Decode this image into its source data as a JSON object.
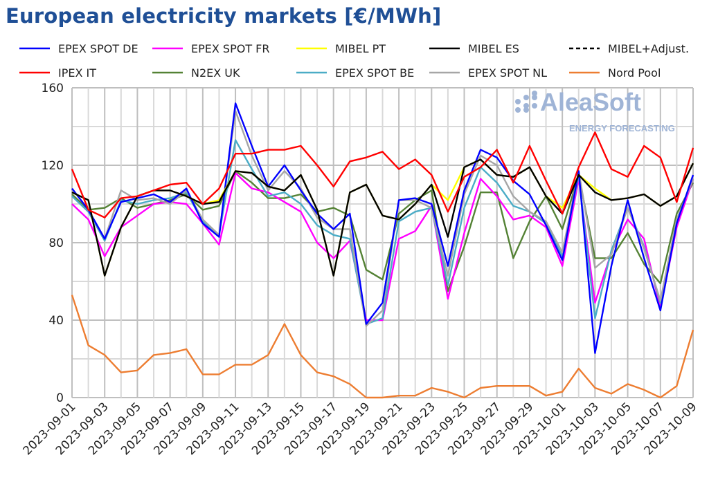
{
  "chart_data": {
    "type": "line",
    "title": "European electricity markets [€/MWh]",
    "xlabel": "",
    "ylabel": "",
    "ylim": [
      0,
      160
    ],
    "yticks": [
      0,
      40,
      80,
      120,
      160
    ],
    "grid": true,
    "legend_placement": "top",
    "watermark": {
      "brand": "AleaSoft",
      "tagline": "ENERGY FORECASTING"
    },
    "x": [
      "2023-09-01",
      "2023-09-02",
      "2023-09-03",
      "2023-09-04",
      "2023-09-05",
      "2023-09-06",
      "2023-09-07",
      "2023-09-08",
      "2023-09-09",
      "2023-09-10",
      "2023-09-11",
      "2023-09-12",
      "2023-09-13",
      "2023-09-14",
      "2023-09-15",
      "2023-09-16",
      "2023-09-17",
      "2023-09-18",
      "2023-09-19",
      "2023-09-20",
      "2023-09-21",
      "2023-09-22",
      "2023-09-23",
      "2023-09-24",
      "2023-09-25",
      "2023-09-26",
      "2023-09-27",
      "2023-09-28",
      "2023-09-29",
      "2023-09-30",
      "2023-10-01",
      "2023-10-02",
      "2023-10-03",
      "2023-10-04",
      "2023-10-05",
      "2023-10-06",
      "2023-10-07",
      "2023-10-08",
      "2023-10-09"
    ],
    "xtick_labels": [
      "2023-09-01",
      "2023-09-03",
      "2023-09-05",
      "2023-09-07",
      "2023-09-09",
      "2023-09-11",
      "2023-09-13",
      "2023-09-15",
      "2023-09-17",
      "2023-09-19",
      "2023-09-21",
      "2023-09-23",
      "2023-09-25",
      "2023-09-27",
      "2023-09-29",
      "2023-10-01",
      "2023-10-03",
      "2023-10-05",
      "2023-10-07",
      "2023-10-09"
    ],
    "series": [
      {
        "name": "Nord Pool",
        "color": "#ed7d31",
        "values": [
          53,
          27,
          22,
          13,
          14,
          22,
          23,
          25,
          12,
          12,
          17,
          17,
          22,
          38,
          22,
          13,
          11,
          7,
          0,
          0,
          1,
          1,
          5,
          3,
          0,
          5,
          6,
          6,
          6,
          1,
          3,
          15,
          5,
          2,
          7,
          4,
          0,
          6,
          35
        ]
      },
      {
        "name": "N2EX UK",
        "color": "#548235",
        "values": [
          105,
          97,
          98,
          103,
          98,
          100,
          102,
          105,
          97,
          99,
          117,
          111,
          103,
          103,
          105,
          96,
          98,
          94,
          66,
          61,
          95,
          102,
          107,
          55,
          78,
          106,
          106,
          72,
          91,
          104,
          87,
          115,
          72,
          72,
          85,
          69,
          59,
          95,
          111
        ]
      },
      {
        "name": "EPEX SPOT FR",
        "color": "#ff00ff",
        "values": [
          100,
          92,
          73,
          88,
          94,
          100,
          101,
          100,
          90,
          79,
          116,
          108,
          106,
          101,
          96,
          80,
          72,
          81,
          40,
          40,
          82,
          86,
          99,
          51,
          85,
          113,
          104,
          92,
          94,
          88,
          68,
          113,
          49,
          75,
          92,
          82,
          46,
          88,
          113
        ]
      },
      {
        "name": "EPEX SPOT BE",
        "color": "#4bacc6",
        "values": [
          104,
          96,
          81,
          102,
          100,
          102,
          103,
          106,
          91,
          84,
          133,
          118,
          104,
          106,
          100,
          89,
          84,
          82,
          38,
          41,
          91,
          96,
          98,
          58,
          98,
          119,
          111,
          99,
          96,
          90,
          73,
          115,
          41,
          76,
          98,
          78,
          49,
          92,
          113
        ]
      },
      {
        "name": "EPEX SPOT NL",
        "color": "#a6a6a6",
        "values": [
          108,
          97,
          82,
          107,
          102,
          103,
          100,
          107,
          92,
          84,
          148,
          125,
          107,
          117,
          108,
          93,
          87,
          87,
          37,
          45,
          102,
          102,
          98,
          63,
          105,
          125,
          120,
          104,
          96,
          91,
          75,
          117,
          67,
          74,
          98,
          77,
          50,
          92,
          113
        ]
      },
      {
        "name": "EPEX SPOT DE",
        "color": "#0000ff",
        "values": [
          108,
          97,
          82,
          101,
          103,
          105,
          101,
          108,
          90,
          83,
          152,
          130,
          109,
          120,
          107,
          95,
          87,
          95,
          38,
          49,
          102,
          103,
          100,
          68,
          107,
          128,
          124,
          112,
          105,
          89,
          71,
          117,
          23,
          68,
          102,
          72,
          45,
          90,
          115
        ]
      },
      {
        "name": "MIBEL PT",
        "color": "#ffff00",
        "values": [
          106,
          102,
          63,
          88,
          104,
          107,
          107,
          104,
          100,
          102,
          117,
          116,
          109,
          107,
          115,
          97,
          63,
          106,
          110,
          94,
          92,
          100,
          110,
          102,
          119,
          123,
          115,
          114,
          119,
          104,
          98,
          115,
          108,
          102,
          103,
          105,
          99,
          104,
          121
        ]
      },
      {
        "name": "MIBEL+Adjust.",
        "color": "#000000",
        "dashed": true,
        "values": [
          106,
          102,
          63,
          88,
          104,
          107,
          107,
          104,
          100,
          101,
          117,
          116,
          109,
          107,
          115,
          97,
          63,
          106,
          110,
          94,
          92,
          100,
          110,
          83,
          119,
          123,
          115,
          114,
          119,
          104,
          95,
          115,
          106,
          102,
          103,
          105,
          99,
          104,
          121
        ]
      },
      {
        "name": "MIBEL ES",
        "color": "#000000",
        "values": [
          106,
          102,
          63,
          88,
          104,
          107,
          107,
          104,
          100,
          101,
          117,
          116,
          109,
          107,
          115,
          97,
          63,
          106,
          110,
          94,
          92,
          100,
          110,
          83,
          119,
          123,
          115,
          114,
          119,
          104,
          95,
          115,
          106,
          102,
          103,
          105,
          99,
          104,
          121
        ]
      },
      {
        "name": "IPEX IT",
        "color": "#ff0000",
        "values": [
          118,
          97,
          93,
          103,
          104,
          107,
          110,
          111,
          100,
          108,
          126,
          126,
          128,
          128,
          130,
          120,
          109,
          122,
          124,
          127,
          118,
          123,
          115,
          96,
          114,
          119,
          128,
          111,
          130,
          112,
          95,
          119,
          137,
          118,
          114,
          130,
          124,
          101,
          129
        ]
      }
    ],
    "legend_order": [
      "EPEX SPOT DE",
      "EPEX SPOT FR",
      "MIBEL PT",
      "MIBEL ES",
      "MIBEL+Adjust.",
      "IPEX IT",
      "N2EX UK",
      "EPEX SPOT BE",
      "EPEX SPOT NL",
      "Nord Pool"
    ]
  }
}
